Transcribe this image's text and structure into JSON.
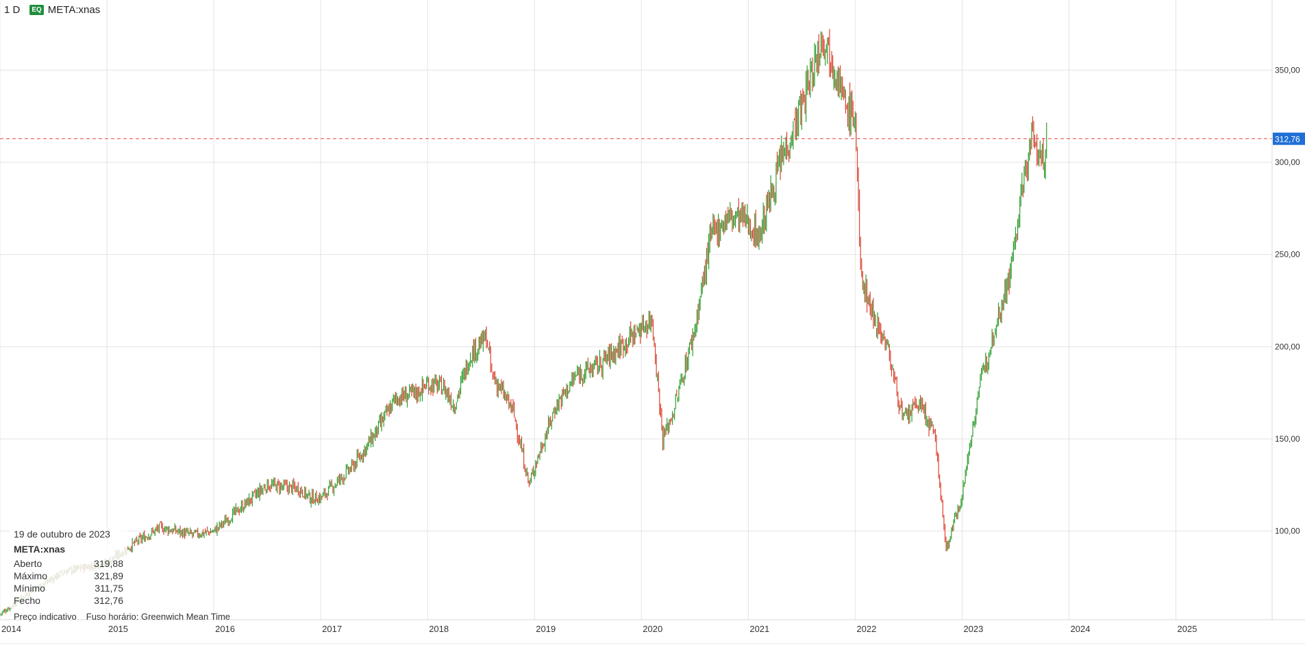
{
  "header": {
    "interval": "1 D",
    "badge": "EQ",
    "symbol": "META:xnas"
  },
  "colors": {
    "up": "#2e9d2e",
    "down": "#d9432f",
    "grid": "#e3e3e3",
    "last_price_line": "#e8454a",
    "last_price_label_bg": "#1f6fd6"
  },
  "info": {
    "date": "19 de outubro de 2023",
    "symbol": "META:xnas",
    "rows": [
      {
        "label": "Aberto",
        "value": "319,88"
      },
      {
        "label": "Máximo",
        "value": "321,89"
      },
      {
        "label": "Mínimo",
        "value": "311,75"
      },
      {
        "label": "Fecho",
        "value": "312,76"
      }
    ]
  },
  "footer": {
    "note": "Preço indicativo",
    "timezone": "Fuso horário: Greenwich Mean Time"
  },
  "chart_data": {
    "type": "line",
    "title": "",
    "xlabel": "",
    "ylabel": "",
    "x_ticks": [
      "2014",
      "2015",
      "2016",
      "2017",
      "2018",
      "2019",
      "2020",
      "2021",
      "2022",
      "2023",
      "2024",
      "2025"
    ],
    "y_ticks": [
      "100,00",
      "150,00",
      "200,00",
      "250,00",
      "300,00",
      "350,00"
    ],
    "y_tick_values": [
      100,
      150,
      200,
      250,
      300,
      350
    ],
    "xlim": [
      2014.0,
      2025.9
    ],
    "ylim": [
      52,
      388
    ],
    "last_price": 312.76,
    "last_price_label": "312,76",
    "grid": true,
    "series": [
      {
        "x": [
          2014.0,
          2014.3,
          2014.6,
          2015.0,
          2015.3,
          2015.5,
          2015.8,
          2016.0,
          2016.3,
          2016.5,
          2016.8,
          2016.9,
          2017.0,
          2017.3,
          2017.5,
          2017.7,
          2017.9,
          2018.0,
          2018.15,
          2018.25,
          2018.4,
          2018.55,
          2018.6,
          2018.8,
          2018.95,
          2019.0,
          2019.2,
          2019.4,
          2019.6,
          2019.8,
          2019.95,
          2020.1,
          2020.2,
          2020.3,
          2020.5,
          2020.65,
          2020.8,
          2020.95,
          2021.1,
          2021.3,
          2021.5,
          2021.65,
          2021.7,
          2021.85,
          2021.9,
          2022.0,
          2022.05,
          2022.15,
          2022.3,
          2022.45,
          2022.6,
          2022.75,
          2022.85,
          2023.0,
          2023.15,
          2023.3,
          2023.45,
          2023.55,
          2023.65,
          2023.75,
          2023.8
        ],
        "y": [
          55,
          68,
          78,
          83,
          95,
          102,
          98,
          100,
          115,
          125,
          123,
          118,
          118,
          135,
          152,
          172,
          175,
          180,
          178,
          168,
          196,
          205,
          185,
          165,
          125,
          135,
          168,
          185,
          190,
          200,
          208,
          215,
          150,
          165,
          210,
          260,
          270,
          270,
          260,
          300,
          330,
          360,
          370,
          345,
          330,
          325,
          240,
          220,
          200,
          160,
          170,
          150,
          90,
          120,
          175,
          210,
          240,
          280,
          315,
          300,
          312.76
        ]
      }
    ]
  }
}
